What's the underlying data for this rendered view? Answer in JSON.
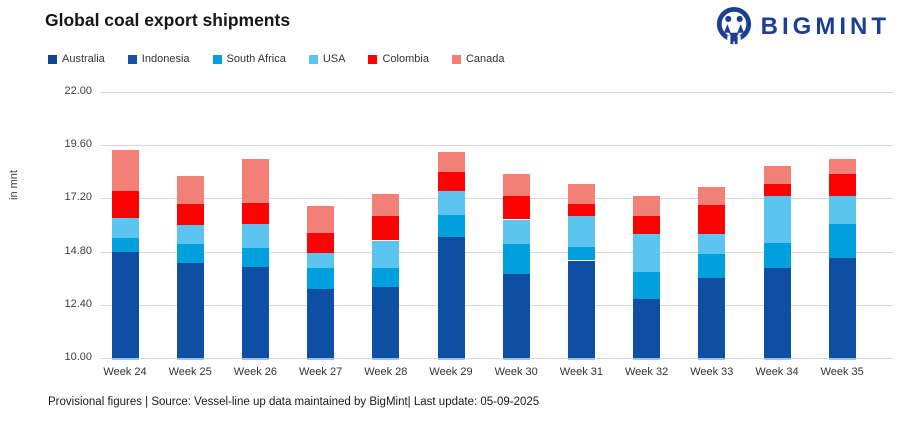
{
  "header": {
    "title": "Global coal export shipments",
    "brand": "BIGMINT"
  },
  "legend": [
    {
      "label": "Australia",
      "color": "#15458d"
    },
    {
      "label": "Indonesia",
      "color": "#1950a3"
    },
    {
      "label": "South Africa",
      "color": "#00a0de"
    },
    {
      "label": "USA",
      "color": "#5bc5f0"
    },
    {
      "label": "Colombia",
      "color": "#fc0303"
    },
    {
      "label": "Canada",
      "color": "#f28076"
    }
  ],
  "chart_data": {
    "type": "bar",
    "subtype": "stacked",
    "title": "Global coal export shipments",
    "ylabel": "in mnt",
    "xlabel": "",
    "ylim": [
      10.0,
      22.0
    ],
    "yticks": [
      22.0,
      19.6,
      17.2,
      14.8,
      12.4,
      10.0
    ],
    "grid": true,
    "legend_position": "top-left",
    "categories": [
      "Week 24",
      "Week 25",
      "Week 26",
      "Week 27",
      "Week 28",
      "Week 29",
      "Week 30",
      "Week 31",
      "Week 32",
      "Week 33",
      "Week 34",
      "Week 35"
    ],
    "note": "Bars are clipped at the axis minimum of 10; the Australia and Indonesia dark-blue segments are visually merged into one dark block.",
    "segments": [
      {
        "key": "australia_indonesia",
        "label": "Australia + Indonesia (merged)",
        "color": "#0e4ea3"
      },
      {
        "key": "south_africa",
        "label": "South Africa",
        "color": "#00a0de"
      },
      {
        "key": "usa",
        "label": "USA",
        "color": "#5bc5f0"
      },
      {
        "key": "colombia",
        "label": "Colombia",
        "color": "#fc0303"
      },
      {
        "key": "canada",
        "label": "Canada",
        "color": "#f28076"
      }
    ],
    "cumulative_tops_mnt": [
      [
        14.8,
        15.4,
        16.3,
        17.55,
        19.4
      ],
      [
        14.3,
        15.15,
        16.0,
        16.95,
        18.2
      ],
      [
        14.1,
        14.95,
        16.05,
        17.0,
        19.0
      ],
      [
        13.1,
        14.05,
        14.75,
        15.65,
        16.85
      ],
      [
        13.2,
        14.05,
        15.3,
        16.4,
        17.4
      ],
      [
        15.45,
        16.45,
        17.55,
        18.4,
        19.3
      ],
      [
        13.8,
        15.15,
        16.25,
        17.3,
        18.3
      ],
      [
        14.4,
        15.0,
        16.4,
        16.95,
        17.85
      ],
      [
        12.65,
        13.9,
        15.6,
        16.4,
        17.3
      ],
      [
        13.6,
        14.7,
        15.6,
        16.9,
        17.7
      ],
      [
        14.05,
        15.2,
        17.3,
        17.85,
        18.65
      ],
      [
        14.5,
        16.05,
        17.3,
        18.3,
        19.0
      ]
    ]
  },
  "footer": {
    "text": "Provisional figures | Source: Vessel-line up data maintained by BigMint|  Last update: 05-09-2025"
  }
}
